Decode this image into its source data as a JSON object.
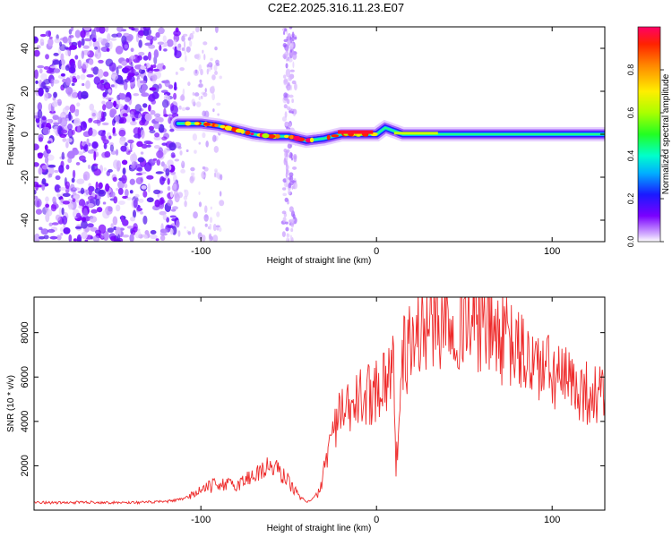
{
  "figure": {
    "title": "C2E2.2025.316.11.23.E07"
  },
  "chart_data": [
    {
      "type": "heatmap",
      "name": "spectrogram",
      "xlabel": "Height of straight line (km)",
      "ylabel": "Frequency (Hz)",
      "xlim": [
        -195,
        130
      ],
      "ylim": [
        -50,
        50
      ],
      "xticks": [
        -100,
        0,
        100
      ],
      "yticks": [
        -40,
        -20,
        0,
        20,
        40
      ],
      "colorbar": {
        "label": "Normalized spectral amplitude",
        "range": [
          0,
          1
        ],
        "ticks": [
          0.0,
          0.2,
          0.4,
          0.6,
          0.8
        ]
      },
      "ridge_track": [
        {
          "x": -113,
          "y": 5
        },
        {
          "x": -100,
          "y": 5
        },
        {
          "x": -90,
          "y": 4
        },
        {
          "x": -80,
          "y": 2
        },
        {
          "x": -70,
          "y": 0
        },
        {
          "x": -60,
          "y": -1
        },
        {
          "x": -50,
          "y": -1
        },
        {
          "x": -40,
          "y": -3
        },
        {
          "x": -30,
          "y": -2
        },
        {
          "x": -20,
          "y": 0
        },
        {
          "x": -10,
          "y": 0
        },
        {
          "x": 0,
          "y": 0
        },
        {
          "x": 5,
          "y": 3
        },
        {
          "x": 15,
          "y": 0
        },
        {
          "x": 50,
          "y": 0
        },
        {
          "x": 100,
          "y": 0
        },
        {
          "x": 130,
          "y": 0
        }
      ]
    },
    {
      "type": "line",
      "name": "snr",
      "xlabel": "Height of straight line (km)",
      "ylabel": "SNR (10 * v/v)",
      "xlim": [
        -195,
        130
      ],
      "ylim": [
        0,
        9600
      ],
      "xticks": [
        -100,
        0,
        100
      ],
      "yticks": [
        2000,
        4000,
        6000,
        8000
      ],
      "color": "#ee2b2b",
      "series": [
        {
          "name": "SNR",
          "x": [
            -195,
            -180,
            -165,
            -150,
            -135,
            -120,
            -110,
            -100,
            -90,
            -80,
            -70,
            -60,
            -55,
            -50,
            -45,
            -40,
            -36,
            -32,
            -30,
            -28,
            -25,
            -22,
            -20,
            -15,
            -10,
            -5,
            0,
            5,
            10,
            11,
            15,
            20,
            25,
            30,
            35,
            40,
            45,
            50,
            55,
            60,
            65,
            70,
            75,
            80,
            85,
            90,
            95,
            100,
            105,
            110,
            115,
            120,
            125,
            130
          ],
          "y": [
            350,
            330,
            360,
            340,
            350,
            380,
            500,
            900,
            1200,
            1100,
            1600,
            2000,
            1700,
            1300,
            700,
            400,
            500,
            900,
            1800,
            2600,
            3500,
            4100,
            4300,
            4500,
            5000,
            5200,
            5500,
            6000,
            6400,
            1800,
            6800,
            7600,
            8100,
            8500,
            8700,
            8800,
            8750,
            8700,
            8600,
            8400,
            8100,
            7800,
            7500,
            7200,
            6900,
            6600,
            6400,
            6100,
            5900,
            5700,
            5500,
            5300,
            5200,
            5100
          ]
        }
      ]
    }
  ]
}
